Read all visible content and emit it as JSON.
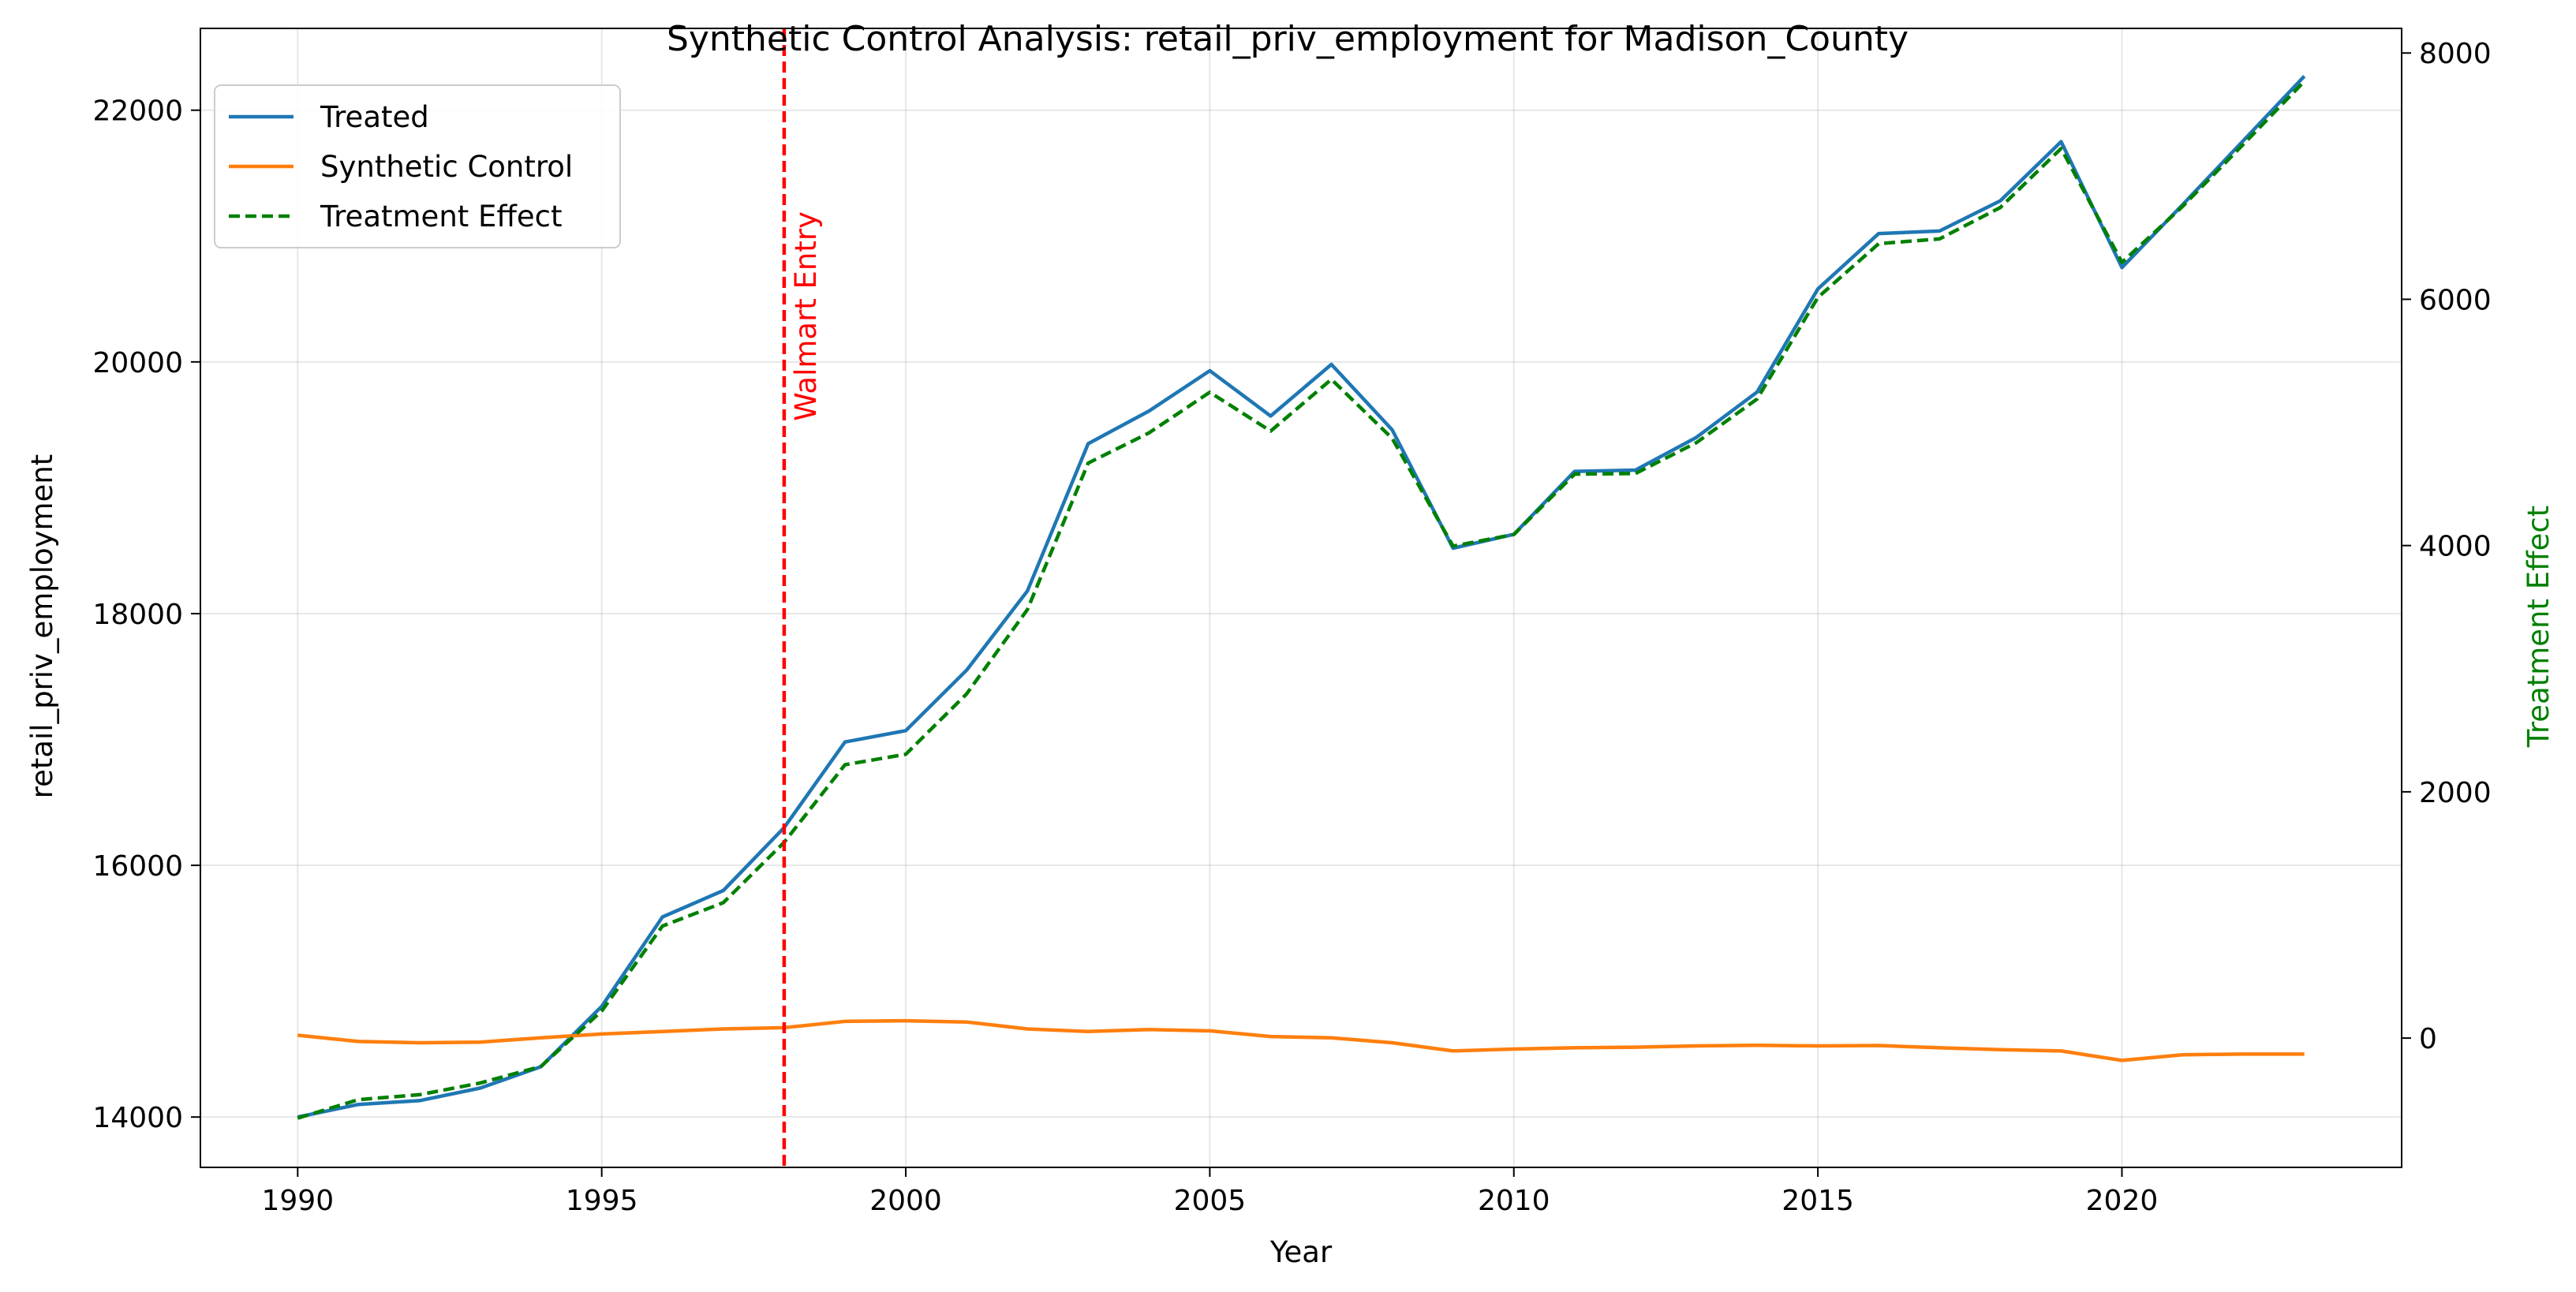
{
  "chart_data": {
    "type": "line",
    "title": "Synthetic Control Analysis: retail_priv_employment for Madison_County",
    "xlabel": "Year",
    "ylabel": "retail_priv_employment",
    "y2label": "Treatment Effect",
    "xlim": [
      1988.4,
      2024.6
    ],
    "ylim": [
      13600,
      22650
    ],
    "y2lim": [
      -1050,
      8200
    ],
    "xticks": [
      1990,
      1995,
      2000,
      2005,
      2010,
      2015,
      2020
    ],
    "yticks": [
      14000,
      16000,
      18000,
      20000,
      22000
    ],
    "y2ticks": [
      0,
      2000,
      4000,
      6000,
      8000
    ],
    "grid": true,
    "legend_position": "top-left",
    "x": [
      1990,
      1991,
      1992,
      1993,
      1994,
      1995,
      1996,
      1997,
      1998,
      1999,
      2000,
      2001,
      2002,
      2003,
      2004,
      2005,
      2006,
      2007,
      2008,
      2009,
      2010,
      2011,
      2012,
      2013,
      2014,
      2015,
      2016,
      2017,
      2018,
      2019,
      2020,
      2021,
      2022,
      2023
    ],
    "series": [
      {
        "name": "Treated",
        "axis": "left",
        "color": "#1f77b4",
        "style": "solid",
        "values": [
          14000,
          14100,
          14130,
          14230,
          14400,
          14880,
          15590,
          15800,
          16300,
          16980,
          17070,
          17550,
          18180,
          19350,
          19610,
          19930,
          19570,
          19980,
          19460,
          18520,
          18630,
          19130,
          19140,
          19400,
          19760,
          20580,
          21020,
          21040,
          21280,
          21750,
          20750,
          21250,
          21760,
          22270
        ]
      },
      {
        "name": "Synthetic Control",
        "axis": "left",
        "color": "#ff7f0e",
        "style": "solid",
        "values": [
          14650,
          14600,
          14590,
          14595,
          14630,
          14660,
          14680,
          14700,
          14710,
          14760,
          14765,
          14755,
          14700,
          14680,
          14695,
          14685,
          14640,
          14630,
          14590,
          14525,
          14540,
          14550,
          14555,
          14565,
          14570,
          14565,
          14568,
          14550,
          14535,
          14525,
          14450,
          14495,
          14500,
          14500
        ]
      },
      {
        "name": "Treatment Effect",
        "axis": "right",
        "color": "#008000",
        "style": "dashed",
        "values": [
          -650,
          -500,
          -460,
          -365,
          -230,
          220,
          910,
          1100,
          1590,
          2220,
          2305,
          2795,
          3480,
          4670,
          4915,
          5245,
          4930,
          5350,
          4870,
          3995,
          4090,
          4580,
          4585,
          4835,
          5190,
          6015,
          6452,
          6490,
          6745,
          7225,
          6300,
          6755,
          7260,
          7770
        ]
      }
    ],
    "annotations": [
      {
        "type": "vline",
        "x": 1998,
        "label": "Walmart Entry",
        "color": "#ff0000",
        "style": "dashed"
      }
    ]
  }
}
